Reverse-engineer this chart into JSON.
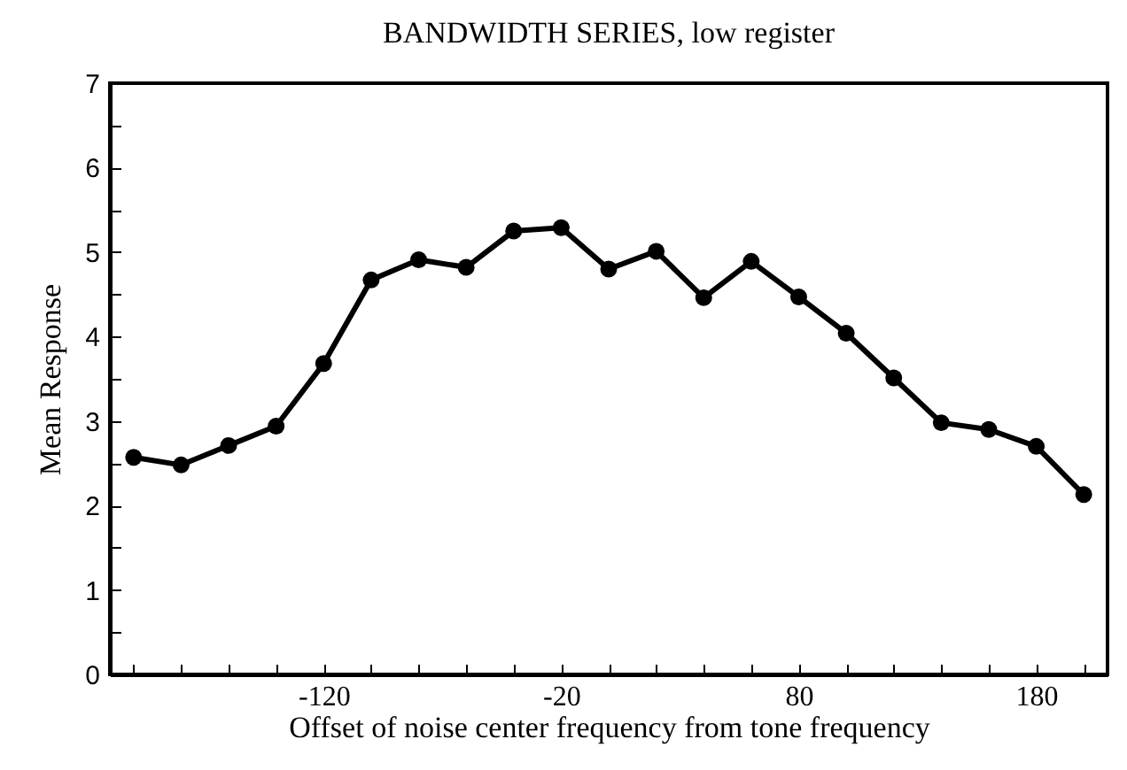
{
  "chart_data": {
    "type": "line",
    "title": "BANDWIDTH SERIES, low register",
    "xlabel": "Offset of noise center frequency from tone frequency",
    "ylabel": "Mean Response",
    "x": [
      -200,
      -180,
      -160,
      -140,
      -120,
      -100,
      -80,
      -60,
      -40,
      -20,
      0,
      20,
      40,
      60,
      80,
      100,
      120,
      140,
      160,
      180,
      200
    ],
    "series": [
      {
        "color": "#000000",
        "values": [
          2.57,
          2.48,
          2.71,
          2.94,
          3.68,
          4.67,
          4.91,
          4.82,
          5.25,
          5.29,
          4.8,
          5.01,
          4.46,
          4.89,
          4.47,
          4.04,
          3.51,
          2.98,
          2.9,
          2.7,
          2.13
        ]
      }
    ],
    "xlim": [
      -210,
      210
    ],
    "xticks": [
      {
        "value": -200,
        "label": null
      },
      {
        "value": -180,
        "label": null
      },
      {
        "value": -160,
        "label": null
      },
      {
        "value": -140,
        "label": null
      },
      -120,
      {
        "value": -100,
        "label": null
      },
      {
        "value": -80,
        "label": null
      },
      {
        "value": -60,
        "label": null
      },
      {
        "value": -40,
        "label": null
      },
      -20,
      {
        "value": 0,
        "label": null
      },
      {
        "value": 20,
        "label": null
      },
      {
        "value": 40,
        "label": null
      },
      {
        "value": 60,
        "label": null
      },
      80,
      {
        "value": 100,
        "label": null
      },
      {
        "value": 120,
        "label": null
      },
      {
        "value": 140,
        "label": null
      },
      {
        "value": 160,
        "label": null
      },
      180,
      {
        "value": 200,
        "label": null
      }
    ],
    "ylim": [
      0,
      7
    ],
    "yticks": [
      0,
      {
        "value": 0.5,
        "label": null
      },
      1,
      {
        "value": 1.5,
        "label": null
      },
      2,
      {
        "value": 2.5,
        "label": null
      },
      3,
      {
        "value": 3.5,
        "label": null
      },
      4,
      {
        "value": 4.5,
        "label": null
      },
      5,
      {
        "value": 5.5,
        "label": null
      },
      6,
      {
        "value": 6.5,
        "label": null
      },
      7
    ],
    "grid": false,
    "marker": "circle",
    "line_style": "solid"
  }
}
